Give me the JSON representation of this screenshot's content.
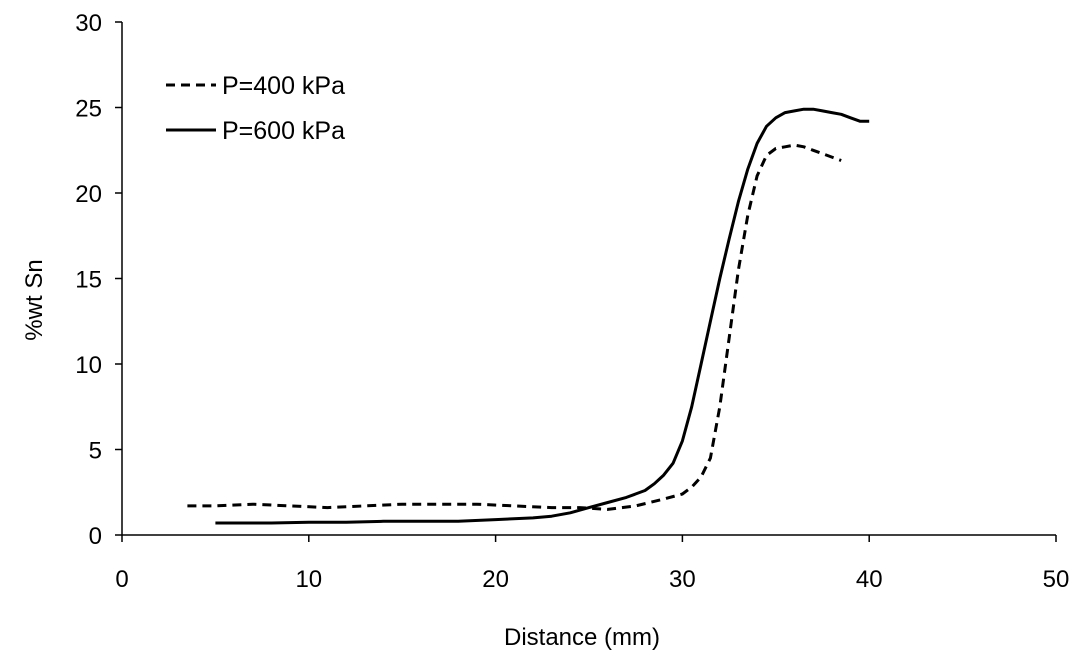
{
  "chart_data": {
    "type": "line",
    "title": "",
    "xlabel": "Distance (mm)",
    "ylabel": "%wt Sn",
    "xlim": [
      0,
      50
    ],
    "ylim": [
      0,
      30
    ],
    "xticks": [
      0,
      10,
      20,
      30,
      40,
      50
    ],
    "yticks": [
      0,
      5,
      10,
      15,
      20,
      25,
      30
    ],
    "grid": false,
    "legend": "top-left",
    "series": [
      {
        "name": "P=400 kPa",
        "style": "dashed",
        "color": "#000000",
        "x": [
          3.5,
          5,
          7,
          9,
          11,
          13,
          15,
          17,
          19,
          21,
          23,
          24.5,
          26,
          27.5,
          29,
          30,
          30.5,
          31,
          31.5,
          32,
          32.5,
          33,
          33.5,
          34,
          34.5,
          35,
          35.5,
          36,
          36.5,
          37,
          38.5
        ],
        "y": [
          1.7,
          1.7,
          1.8,
          1.7,
          1.6,
          1.7,
          1.8,
          1.8,
          1.8,
          1.7,
          1.6,
          1.6,
          1.5,
          1.7,
          2.1,
          2.4,
          2.8,
          3.4,
          4.5,
          7.5,
          11.5,
          15.5,
          18.7,
          21.0,
          22.2,
          22.6,
          22.7,
          22.8,
          22.7,
          22.5,
          21.9
        ]
      },
      {
        "name": "P=600 kPa",
        "style": "solid",
        "color": "#000000",
        "x": [
          5,
          8,
          10,
          12,
          14,
          16,
          18,
          20,
          22,
          23,
          24,
          25,
          26,
          27,
          28,
          28.5,
          29,
          29.5,
          30,
          30.5,
          31,
          31.5,
          32,
          32.5,
          33,
          33.5,
          34,
          34.5,
          35,
          35.5,
          36,
          36.5,
          37,
          37.5,
          38,
          38.5,
          39,
          39.5,
          40
        ],
        "y": [
          0.7,
          0.7,
          0.75,
          0.75,
          0.8,
          0.8,
          0.8,
          0.9,
          1.0,
          1.1,
          1.3,
          1.6,
          1.9,
          2.2,
          2.6,
          3.0,
          3.5,
          4.2,
          5.5,
          7.5,
          10.0,
          12.5,
          15.0,
          17.3,
          19.5,
          21.4,
          22.9,
          23.9,
          24.4,
          24.7,
          24.8,
          24.9,
          24.9,
          24.8,
          24.7,
          24.6,
          24.4,
          24.2,
          24.2
        ]
      }
    ]
  }
}
